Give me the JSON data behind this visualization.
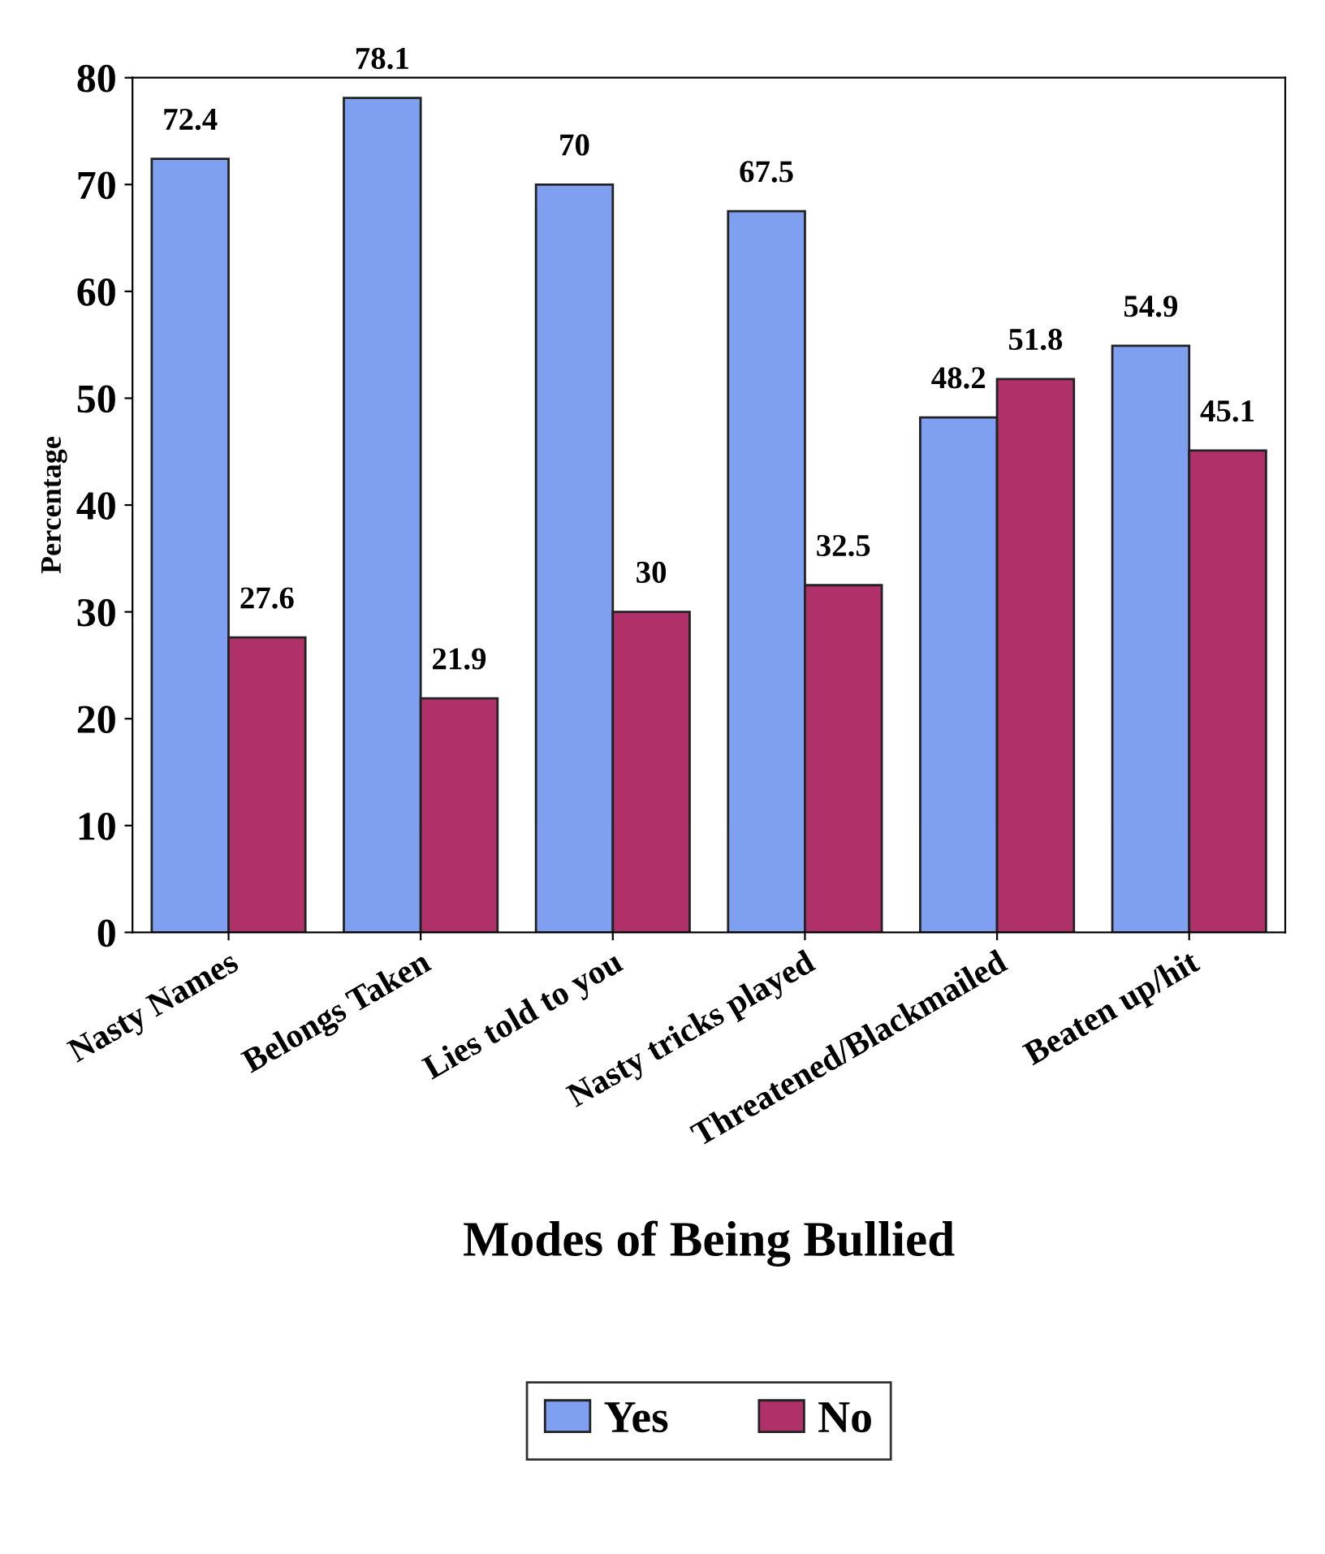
{
  "chart_data": {
    "type": "bar",
    "xlabel": "Modes of Being Bullied",
    "ylabel": "Percentage",
    "categories": [
      "Nasty Names",
      "Belongs Taken",
      "Lies told to you",
      "Nasty tricks played",
      "Threatened/Blackmailed",
      "Beaten up/hit"
    ],
    "series": [
      {
        "name": "Yes",
        "color": "#7f9ff0",
        "values": [
          72.4,
          78.1,
          70,
          67.5,
          48.2,
          54.9
        ]
      },
      {
        "name": "No",
        "color": "#b0306a",
        "values": [
          27.6,
          21.9,
          30,
          32.5,
          51.8,
          45.1
        ]
      }
    ],
    "ylim": [
      0,
      80
    ],
    "yticks": [
      0,
      10,
      20,
      30,
      40,
      50,
      60,
      70,
      80
    ],
    "grid": false,
    "legend": "bottom",
    "data_labels": true
  }
}
